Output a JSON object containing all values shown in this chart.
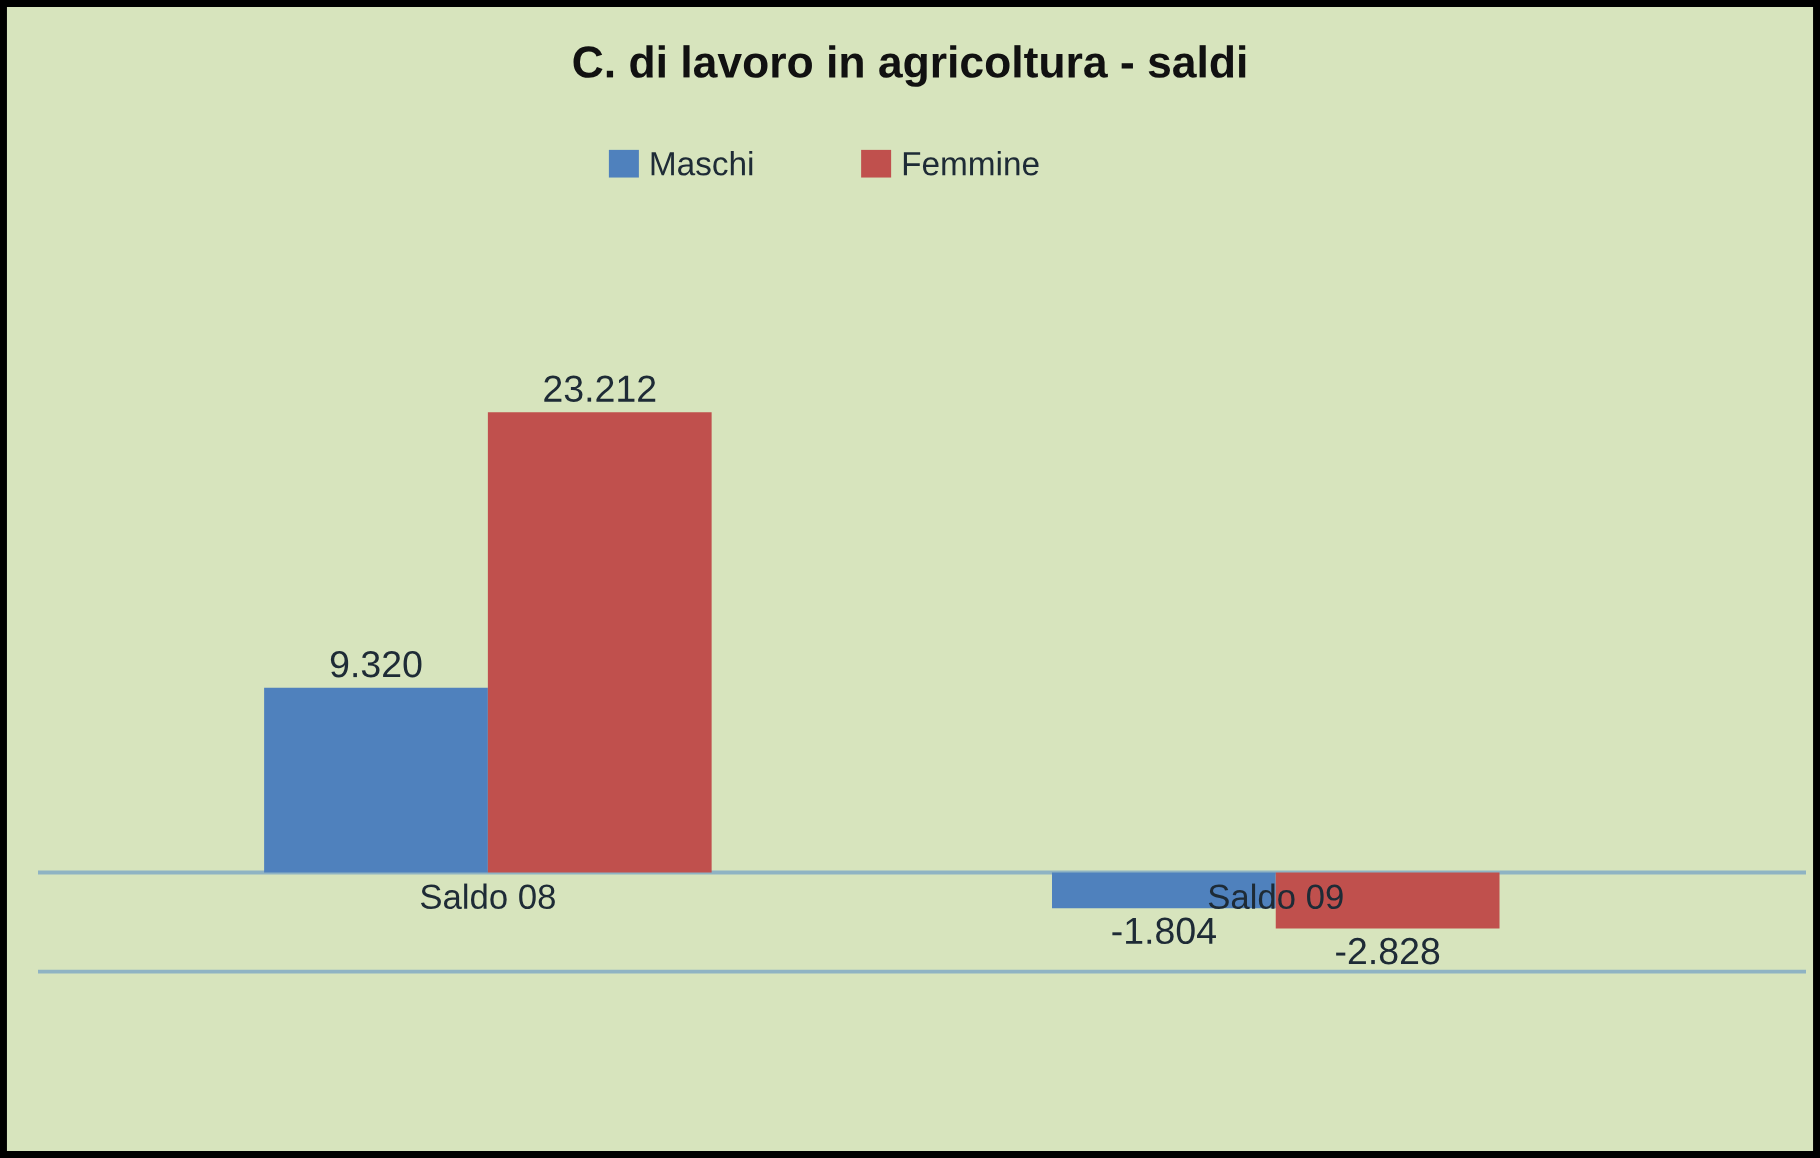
{
  "chart_data": {
    "type": "bar",
    "title": "C. di lavoro in agricoltura - saldi",
    "categories": [
      "Saldo 08",
      "Saldo 09"
    ],
    "series": [
      {
        "name": "Maschi",
        "color": "#4f81bd",
        "values": [
          9320,
          -1804
        ],
        "value_labels": [
          "9.320",
          "-1.804"
        ]
      },
      {
        "name": "Femmine",
        "color": "#c0504d",
        "values": [
          23212,
          -2828
        ],
        "value_labels": [
          "23.212",
          "-2.828"
        ]
      }
    ],
    "ylim": [
      -14400,
      44000
    ],
    "tick_labels": "x",
    "legend": "top",
    "ref_lines": [
      {
        "axis": "y",
        "value": 0,
        "color": "#8fb3c3"
      },
      {
        "axis": "y",
        "value": -5000,
        "color": "#8fb3c3"
      }
    ]
  }
}
